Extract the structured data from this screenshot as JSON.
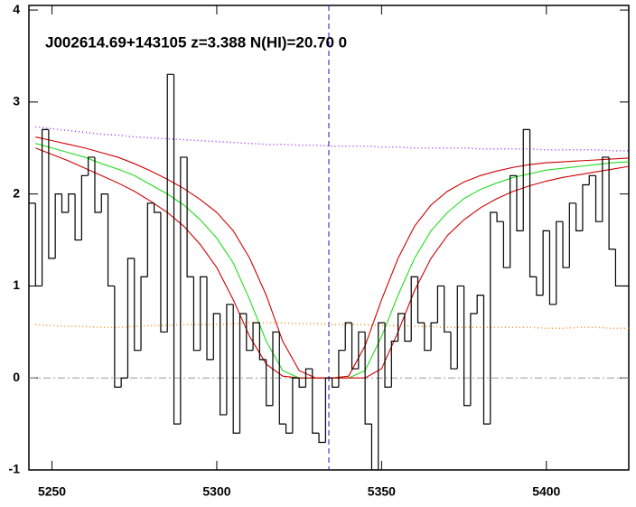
{
  "chart_data": {
    "type": "step",
    "title": "J002614.69+143105 z=3.388 N(HI)=20.70 0",
    "xlim": [
      5243,
      5425
    ],
    "ylim": [
      -1,
      4.05
    ],
    "xticks": [
      5250,
      5300,
      5350,
      5400
    ],
    "yticks": [
      -1,
      0,
      1,
      2,
      3,
      4
    ],
    "hline": 0,
    "vline": 5334,
    "x": [
      5244,
      5246,
      5248,
      5250,
      5252,
      5254,
      5256,
      5258,
      5260,
      5262,
      5264,
      5266,
      5268,
      5270,
      5272,
      5274,
      5276,
      5278,
      5280,
      5282,
      5284,
      5286,
      5288,
      5290,
      5292,
      5294,
      5296,
      5298,
      5300,
      5302,
      5304,
      5306,
      5308,
      5310,
      5312,
      5314,
      5316,
      5318,
      5320,
      5322,
      5324,
      5326,
      5328,
      5330,
      5332,
      5334,
      5336,
      5338,
      5340,
      5342,
      5344,
      5346,
      5348,
      5350,
      5352,
      5354,
      5356,
      5358,
      5360,
      5362,
      5364,
      5366,
      5368,
      5370,
      5372,
      5374,
      5376,
      5378,
      5380,
      5382,
      5384,
      5386,
      5388,
      5390,
      5392,
      5394,
      5396,
      5398,
      5400,
      5402,
      5404,
      5406,
      5408,
      5410,
      5412,
      5414,
      5416,
      5418,
      5420,
      5422,
      5424
    ],
    "values": [
      1.9,
      1.0,
      2.7,
      1.3,
      2.0,
      1.8,
      2.0,
      1.5,
      2.2,
      2.4,
      1.8,
      2.0,
      1.0,
      -0.1,
      0.0,
      1.3,
      0.3,
      1.1,
      1.9,
      1.8,
      0.5,
      3.3,
      -0.5,
      2.4,
      1.1,
      0.3,
      1.1,
      0.2,
      0.7,
      -0.4,
      0.8,
      -0.6,
      0.7,
      0.3,
      0.6,
      0.2,
      -0.3,
      0.5,
      -0.5,
      -0.6,
      0.0,
      -0.1,
      0.1,
      -0.6,
      -0.7,
      0.0,
      -0.1,
      0.3,
      0.6,
      0.1,
      0.5,
      -0.5,
      -1.0,
      0.6,
      -0.1,
      0.4,
      0.7,
      0.4,
      1.1,
      0.6,
      0.3,
      0.6,
      1.0,
      0.5,
      0.1,
      1.0,
      -0.3,
      0.7,
      0.9,
      -0.5,
      1.8,
      1.7,
      1.2,
      2.2,
      1.6,
      2.7,
      1.1,
      0.9,
      1.6,
      0.8,
      1.7,
      1.2,
      1.9,
      1.6,
      2.1,
      2.2,
      1.7,
      2.4,
      1.4,
      1.0,
      1.0
    ],
    "color": "#000000",
    "model_x": [
      5245,
      5250,
      5255,
      5260,
      5265,
      5270,
      5275,
      5280,
      5285,
      5290,
      5295,
      5300,
      5305,
      5310,
      5315,
      5320,
      5325,
      5330,
      5335,
      5340,
      5345,
      5350,
      5355,
      5360,
      5365,
      5370,
      5375,
      5380,
      5385,
      5390,
      5395,
      5400,
      5405,
      5410,
      5415,
      5420,
      5425
    ],
    "models": [
      {
        "color": "#9b30ff",
        "dash": "dot",
        "values": [
          2.73,
          2.71,
          2.69,
          2.67,
          2.65,
          2.64,
          2.62,
          2.61,
          2.6,
          2.59,
          2.58,
          2.57,
          2.56,
          2.55,
          2.54,
          2.54,
          2.53,
          2.53,
          2.52,
          2.52,
          2.52,
          2.51,
          2.51,
          2.5,
          2.5,
          2.5,
          2.5,
          2.49,
          2.49,
          2.49,
          2.49,
          2.48,
          2.48,
          2.48,
          2.48,
          2.47,
          2.47
        ]
      },
      {
        "color": "#ff8c1a",
        "dash": "dot",
        "values": [
          0.58,
          0.57,
          0.56,
          0.56,
          0.55,
          0.55,
          0.56,
          0.57,
          0.57,
          0.58,
          0.58,
          0.58,
          0.59,
          0.6,
          0.6,
          0.6,
          0.59,
          0.59,
          0.58,
          0.58,
          0.58,
          0.57,
          0.57,
          0.56,
          0.56,
          0.55,
          0.55,
          0.55,
          0.55,
          0.55,
          0.55,
          0.54,
          0.54,
          0.55,
          0.55,
          0.54,
          0.54
        ]
      },
      {
        "color": "#22dd22",
        "dash": "solid",
        "values": [
          2.55,
          2.5,
          2.45,
          2.4,
          2.33,
          2.27,
          2.2,
          2.1,
          2.0,
          1.88,
          1.72,
          1.52,
          1.25,
          0.85,
          0.4,
          0.08,
          0.0,
          0.0,
          0.0,
          0.0,
          0.08,
          0.45,
          0.9,
          1.3,
          1.6,
          1.8,
          1.95,
          2.05,
          2.12,
          2.18,
          2.22,
          2.26,
          2.28,
          2.3,
          2.32,
          2.34,
          2.35
        ]
      },
      {
        "color": "#d00000",
        "dash": "solid",
        "values": [
          2.62,
          2.58,
          2.54,
          2.5,
          2.45,
          2.4,
          2.33,
          2.25,
          2.16,
          2.06,
          1.94,
          1.8,
          1.6,
          1.3,
          0.9,
          0.4,
          0.08,
          0,
          0,
          0.02,
          0.35,
          0.85,
          1.3,
          1.65,
          1.88,
          2.03,
          2.13,
          2.2,
          2.25,
          2.29,
          2.32,
          2.34,
          2.35,
          2.36,
          2.37,
          2.38,
          2.39
        ]
      },
      {
        "color": "#d00000",
        "dash": "solid",
        "values": [
          2.5,
          2.43,
          2.36,
          2.28,
          2.2,
          2.12,
          2.03,
          1.92,
          1.8,
          1.65,
          1.45,
          1.2,
          0.85,
          0.45,
          0.15,
          0.02,
          0,
          0,
          0,
          0,
          0,
          0.1,
          0.5,
          0.95,
          1.3,
          1.55,
          1.72,
          1.85,
          1.95,
          2.03,
          2.09,
          2.14,
          2.18,
          2.21,
          2.24,
          2.27,
          2.3
        ]
      }
    ]
  }
}
